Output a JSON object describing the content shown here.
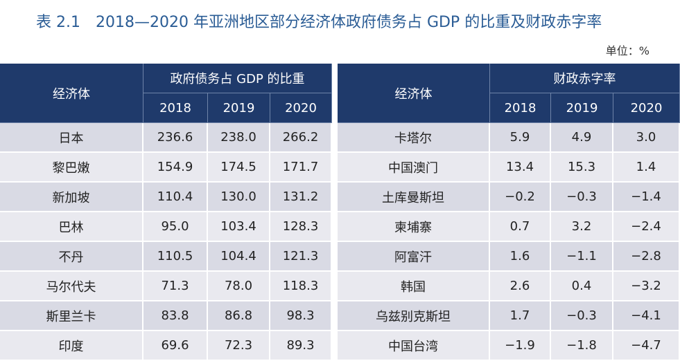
{
  "title": "表 2.1　2018—2020 年亚洲地区部分经济体政府债务占 GDP 的比重及财政赤字率",
  "unit": "单位：%",
  "tables": [
    {
      "header": "经济体",
      "group": "政府债务占 GDP 的比重",
      "years": [
        "2018",
        "2019",
        "2020"
      ],
      "rows": [
        [
          "日本",
          "236.6",
          "238.0",
          "266.2"
        ],
        [
          "黎巴嫩",
          "154.9",
          "174.5",
          "171.7"
        ],
        [
          "新加坡",
          "110.4",
          "130.0",
          "131.2"
        ],
        [
          "巴林",
          "95.0",
          "103.4",
          "128.3"
        ],
        [
          "不丹",
          "110.5",
          "104.4",
          "121.3"
        ],
        [
          "马尔代夫",
          "71.3",
          "78.0",
          "118.3"
        ],
        [
          "斯里兰卡",
          "83.8",
          "86.8",
          "98.3"
        ],
        [
          "印度",
          "69.6",
          "72.3",
          "89.3"
        ]
      ]
    },
    {
      "header": "经济体",
      "group": "财政赤字率",
      "years": [
        "2018",
        "2019",
        "2020"
      ],
      "rows": [
        [
          "卡塔尔",
          "5.9",
          "4.9",
          "3.0"
        ],
        [
          "中国澳门",
          "13.4",
          "15.3",
          "1.4"
        ],
        [
          "土库曼斯坦",
          "−0.2",
          "−0.3",
          "−1.4"
        ],
        [
          "柬埔寨",
          "0.7",
          "3.2",
          "−2.4"
        ],
        [
          "阿富汗",
          "1.6",
          "−1.1",
          "−2.8"
        ],
        [
          "韩国",
          "2.6",
          "0.4",
          "−3.2"
        ],
        [
          "乌兹别克斯坦",
          "1.7",
          "−0.3",
          "−4.1"
        ],
        [
          "中国台湾",
          "−1.9",
          "−1.8",
          "−4.7"
        ]
      ]
    }
  ]
}
